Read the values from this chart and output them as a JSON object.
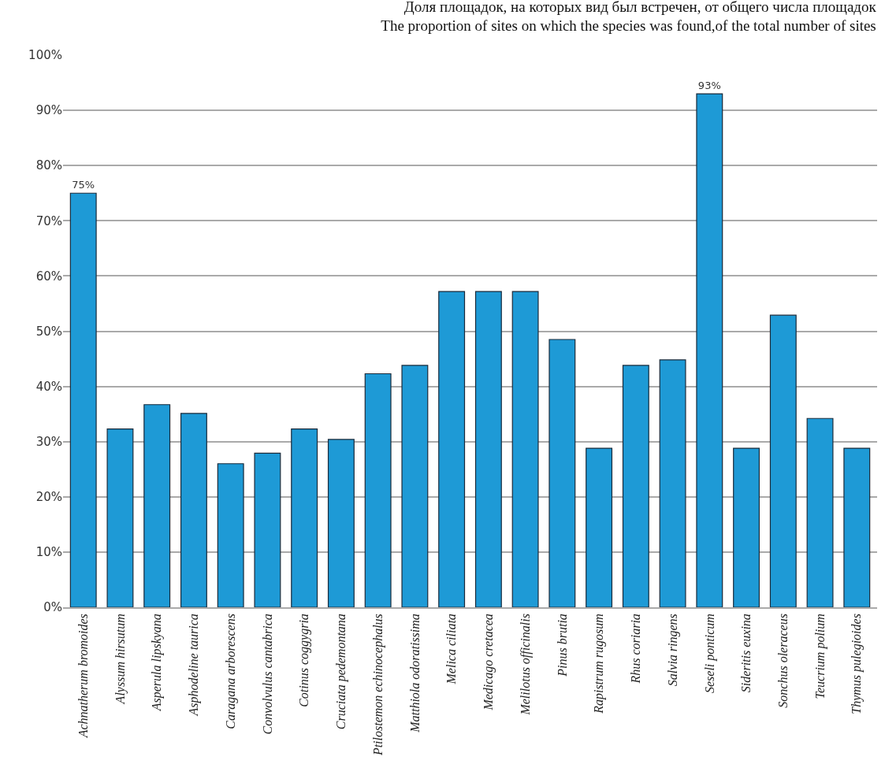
{
  "chart_data": {
    "type": "bar",
    "title": "Доля площадок, на которых вид был встречен, от общего числа площадок\nThe proportion of sites on which the species was found,of the total number of sites",
    "categories": [
      "Achnatherum bromoides",
      "Alyssum hirsutum",
      "Asperula lipskyana",
      "Asphodeline taurica",
      "Caragana arborescens",
      "Convolvulus cantabrica",
      "Cotinus coggygria",
      "Cruciata pedemontana",
      "Ptilostemon echinocephalus",
      "Matthiola odoratissima",
      "Melica ciliata",
      "Medicago cretacea",
      "Melilotus officinalis",
      "Pinus brutia",
      "Rapistrum rugosum",
      "Rhus coriaria",
      "Salvia ringens",
      "Seseli ponticum",
      "Sideritis euxina",
      "Sonchus oleraceus",
      "Teucrium polium",
      "Thymus pulegioides"
    ],
    "values": [
      75,
      32.3,
      36.7,
      35.1,
      26.0,
      27.9,
      32.3,
      30.4,
      42.3,
      43.8,
      57.2,
      57.2,
      57.2,
      48.5,
      28.8,
      43.8,
      44.8,
      93,
      28.8,
      52.9,
      34.2,
      28.8
    ],
    "value_labels": [
      "75%",
      null,
      null,
      null,
      null,
      null,
      null,
      null,
      null,
      null,
      null,
      null,
      null,
      null,
      null,
      null,
      null,
      "93%",
      null,
      null,
      null,
      null
    ],
    "color": "#1e9ad6",
    "ylim": [
      0,
      100
    ],
    "yticks": [
      {
        "value": 0,
        "label": "0%"
      },
      {
        "value": 10,
        "label": "10%"
      },
      {
        "value": 20,
        "label": "20%"
      },
      {
        "value": 30,
        "label": "30%"
      },
      {
        "value": 40,
        "label": "40%"
      },
      {
        "value": 50,
        "label": "50%"
      },
      {
        "value": 60,
        "label": "60%"
      },
      {
        "value": 70,
        "label": "70%"
      },
      {
        "value": 80,
        "label": "80%"
      },
      {
        "value": 90,
        "label": "90%"
      },
      {
        "value": 100,
        "label": "100%"
      }
    ],
    "grid": "y",
    "legend": false
  }
}
